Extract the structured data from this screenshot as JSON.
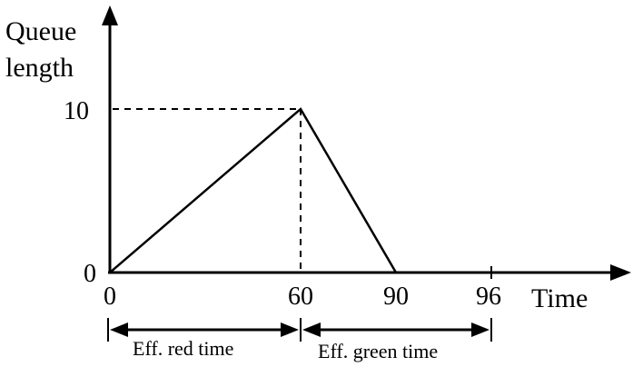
{
  "chart_data": {
    "type": "line",
    "ylabel_line1": "Queue",
    "ylabel_line2": "length",
    "xlabel": "Time",
    "x_ticks": [
      "0",
      "60",
      "90",
      "96"
    ],
    "y_ticks": [
      "10",
      "0"
    ],
    "series": [
      {
        "x": [
          0,
          60,
          90
        ],
        "y": [
          0,
          10,
          0
        ]
      }
    ],
    "reference_lines": [
      {
        "from": [
          0,
          10
        ],
        "to": [
          60,
          10
        ],
        "style": "dashed"
      },
      {
        "from": [
          60,
          10
        ],
        "to": [
          60,
          0
        ],
        "style": "dashed"
      }
    ],
    "intervals": [
      {
        "label": "Eff. red time",
        "start": 0,
        "end": 60
      },
      {
        "label": "Eff. green time",
        "start": 60,
        "end": 96
      }
    ],
    "colors": {
      "line": "#000000",
      "background": "#ffffff"
    }
  }
}
